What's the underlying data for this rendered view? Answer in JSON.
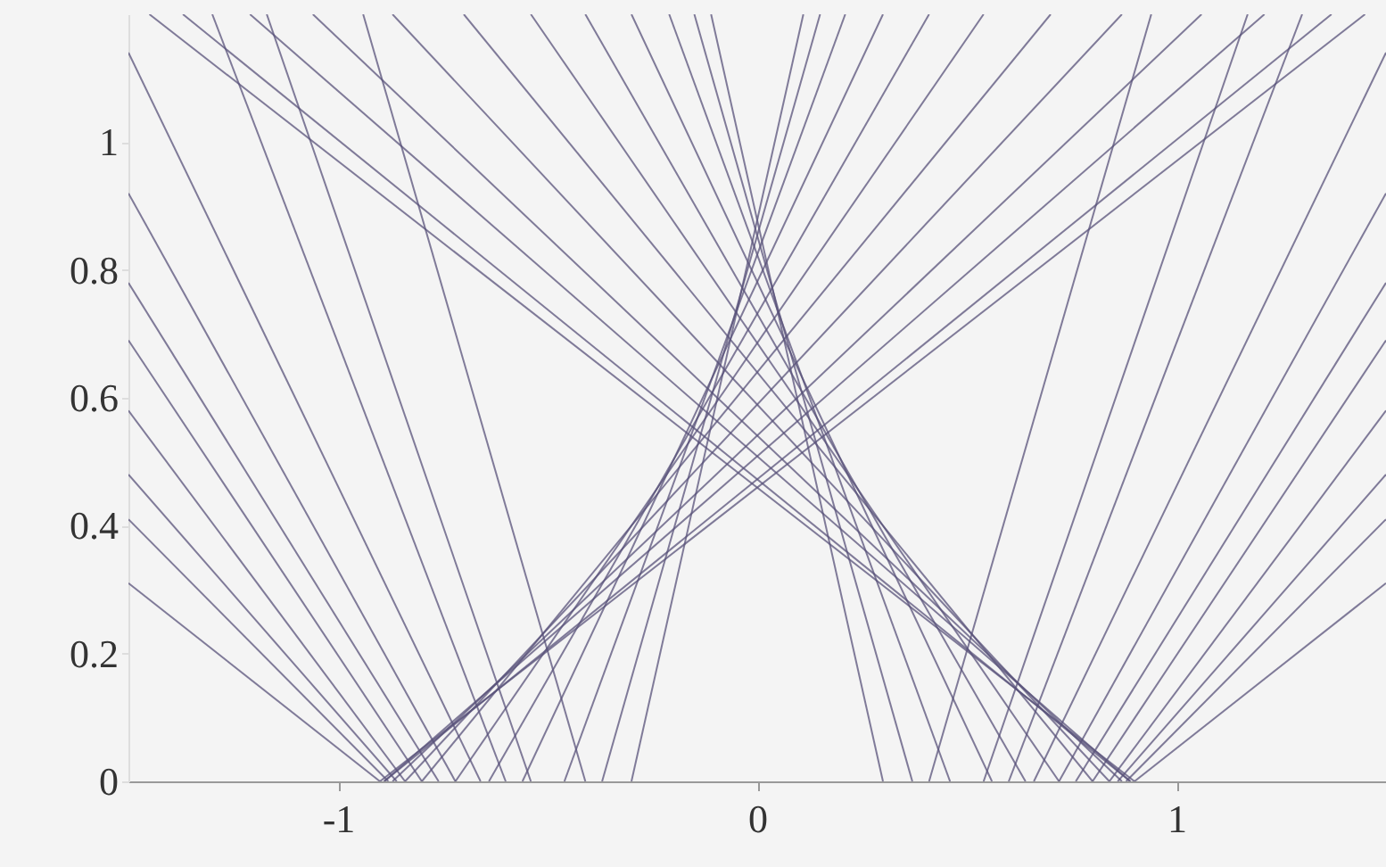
{
  "chart_data": {
    "type": "line",
    "color": "#58527a",
    "line_style": "solid",
    "marker": "none",
    "grid": false,
    "xlim": [
      -1.5,
      1.5
    ],
    "ylim": [
      0,
      1.2
    ],
    "xticks": [
      -1,
      0,
      1
    ],
    "yticks": [
      0,
      0.2,
      0.4,
      0.6,
      0.8,
      1
    ],
    "series": [
      {
        "x": [
          -0.9,
          1.45
        ],
        "values": [
          0,
          1.2
        ]
      },
      {
        "x": [
          -0.89,
          1.37
        ],
        "values": [
          0,
          1.2
        ]
      },
      {
        "x": [
          -0.89,
          1.21
        ],
        "values": [
          0,
          1.2
        ]
      },
      {
        "x": [
          -0.87,
          1.06
        ],
        "values": [
          0,
          1.2
        ]
      },
      {
        "x": [
          -0.84,
          0.87
        ],
        "values": [
          0,
          1.2
        ]
      },
      {
        "x": [
          -0.8,
          0.7
        ],
        "values": [
          0,
          1.2
        ]
      },
      {
        "x": [
          -0.72,
          0.54
        ],
        "values": [
          0,
          1.2
        ]
      },
      {
        "x": [
          -0.64,
          0.41
        ],
        "values": [
          0,
          1.2
        ]
      },
      {
        "x": [
          -0.56,
          0.3
        ],
        "values": [
          0,
          1.2
        ]
      },
      {
        "x": [
          -0.46,
          0.21
        ],
        "values": [
          0,
          1.2
        ]
      },
      {
        "x": [
          -0.37,
          0.15
        ],
        "values": [
          0,
          1.2
        ]
      },
      {
        "x": [
          -0.3,
          0.11
        ],
        "values": [
          0,
          1.2
        ]
      },
      {
        "x": [
          0.9,
          -1.45
        ],
        "values": [
          0,
          1.2
        ]
      },
      {
        "x": [
          0.89,
          -1.37
        ],
        "values": [
          0,
          1.2
        ]
      },
      {
        "x": [
          0.89,
          -1.21
        ],
        "values": [
          0,
          1.2
        ]
      },
      {
        "x": [
          0.87,
          -1.06
        ],
        "values": [
          0,
          1.2
        ]
      },
      {
        "x": [
          0.84,
          -0.87
        ],
        "values": [
          0,
          1.2
        ]
      },
      {
        "x": [
          0.8,
          -0.7
        ],
        "values": [
          0,
          1.2
        ]
      },
      {
        "x": [
          0.72,
          -0.54
        ],
        "values": [
          0,
          1.2
        ]
      },
      {
        "x": [
          0.64,
          -0.41
        ],
        "values": [
          0,
          1.2
        ]
      },
      {
        "x": [
          0.56,
          -0.3
        ],
        "values": [
          0,
          1.2
        ]
      },
      {
        "x": [
          0.46,
          -0.21
        ],
        "values": [
          0,
          1.2
        ]
      },
      {
        "x": [
          0.37,
          -0.15
        ],
        "values": [
          0,
          1.2
        ]
      },
      {
        "x": [
          0.3,
          -0.11
        ],
        "values": [
          0,
          1.2
        ]
      },
      {
        "x": [
          -0.9,
          -1.5
        ],
        "values": [
          0,
          0.31
        ]
      },
      {
        "x": [
          -0.88,
          -1.5
        ],
        "values": [
          0,
          0.41
        ]
      },
      {
        "x": [
          -0.86,
          -1.5
        ],
        "values": [
          0,
          0.48
        ]
      },
      {
        "x": [
          -0.84,
          -1.5
        ],
        "values": [
          0,
          0.58
        ]
      },
      {
        "x": [
          -0.8,
          -1.5
        ],
        "values": [
          0,
          0.69
        ]
      },
      {
        "x": [
          -0.76,
          -1.5
        ],
        "values": [
          0,
          0.78
        ]
      },
      {
        "x": [
          -0.72,
          -1.5
        ],
        "values": [
          0,
          0.92
        ]
      },
      {
        "x": [
          -0.66,
          -1.5
        ],
        "values": [
          0,
          1.14
        ]
      },
      {
        "x": [
          -0.6,
          -1.3
        ],
        "values": [
          0,
          1.2
        ]
      },
      {
        "x": [
          -0.54,
          -1.17
        ],
        "values": [
          0,
          1.2
        ]
      },
      {
        "x": [
          -0.41,
          -0.94
        ],
        "values": [
          0,
          1.2
        ]
      },
      {
        "x": [
          0.9,
          1.5
        ],
        "values": [
          0,
          0.31
        ]
      },
      {
        "x": [
          0.88,
          1.5
        ],
        "values": [
          0,
          0.41
        ]
      },
      {
        "x": [
          0.86,
          1.5
        ],
        "values": [
          0,
          0.48
        ]
      },
      {
        "x": [
          0.84,
          1.5
        ],
        "values": [
          0,
          0.58
        ]
      },
      {
        "x": [
          0.8,
          1.5
        ],
        "values": [
          0,
          0.69
        ]
      },
      {
        "x": [
          0.76,
          1.5
        ],
        "values": [
          0,
          0.78
        ]
      },
      {
        "x": [
          0.72,
          1.5
        ],
        "values": [
          0,
          0.92
        ]
      },
      {
        "x": [
          0.66,
          1.5
        ],
        "values": [
          0,
          1.14
        ]
      },
      {
        "x": [
          0.6,
          1.3
        ],
        "values": [
          0,
          1.2
        ]
      },
      {
        "x": [
          0.54,
          1.17
        ],
        "values": [
          0,
          1.2
        ]
      },
      {
        "x": [
          0.41,
          0.94
        ],
        "values": [
          0,
          1.2
        ]
      }
    ]
  }
}
